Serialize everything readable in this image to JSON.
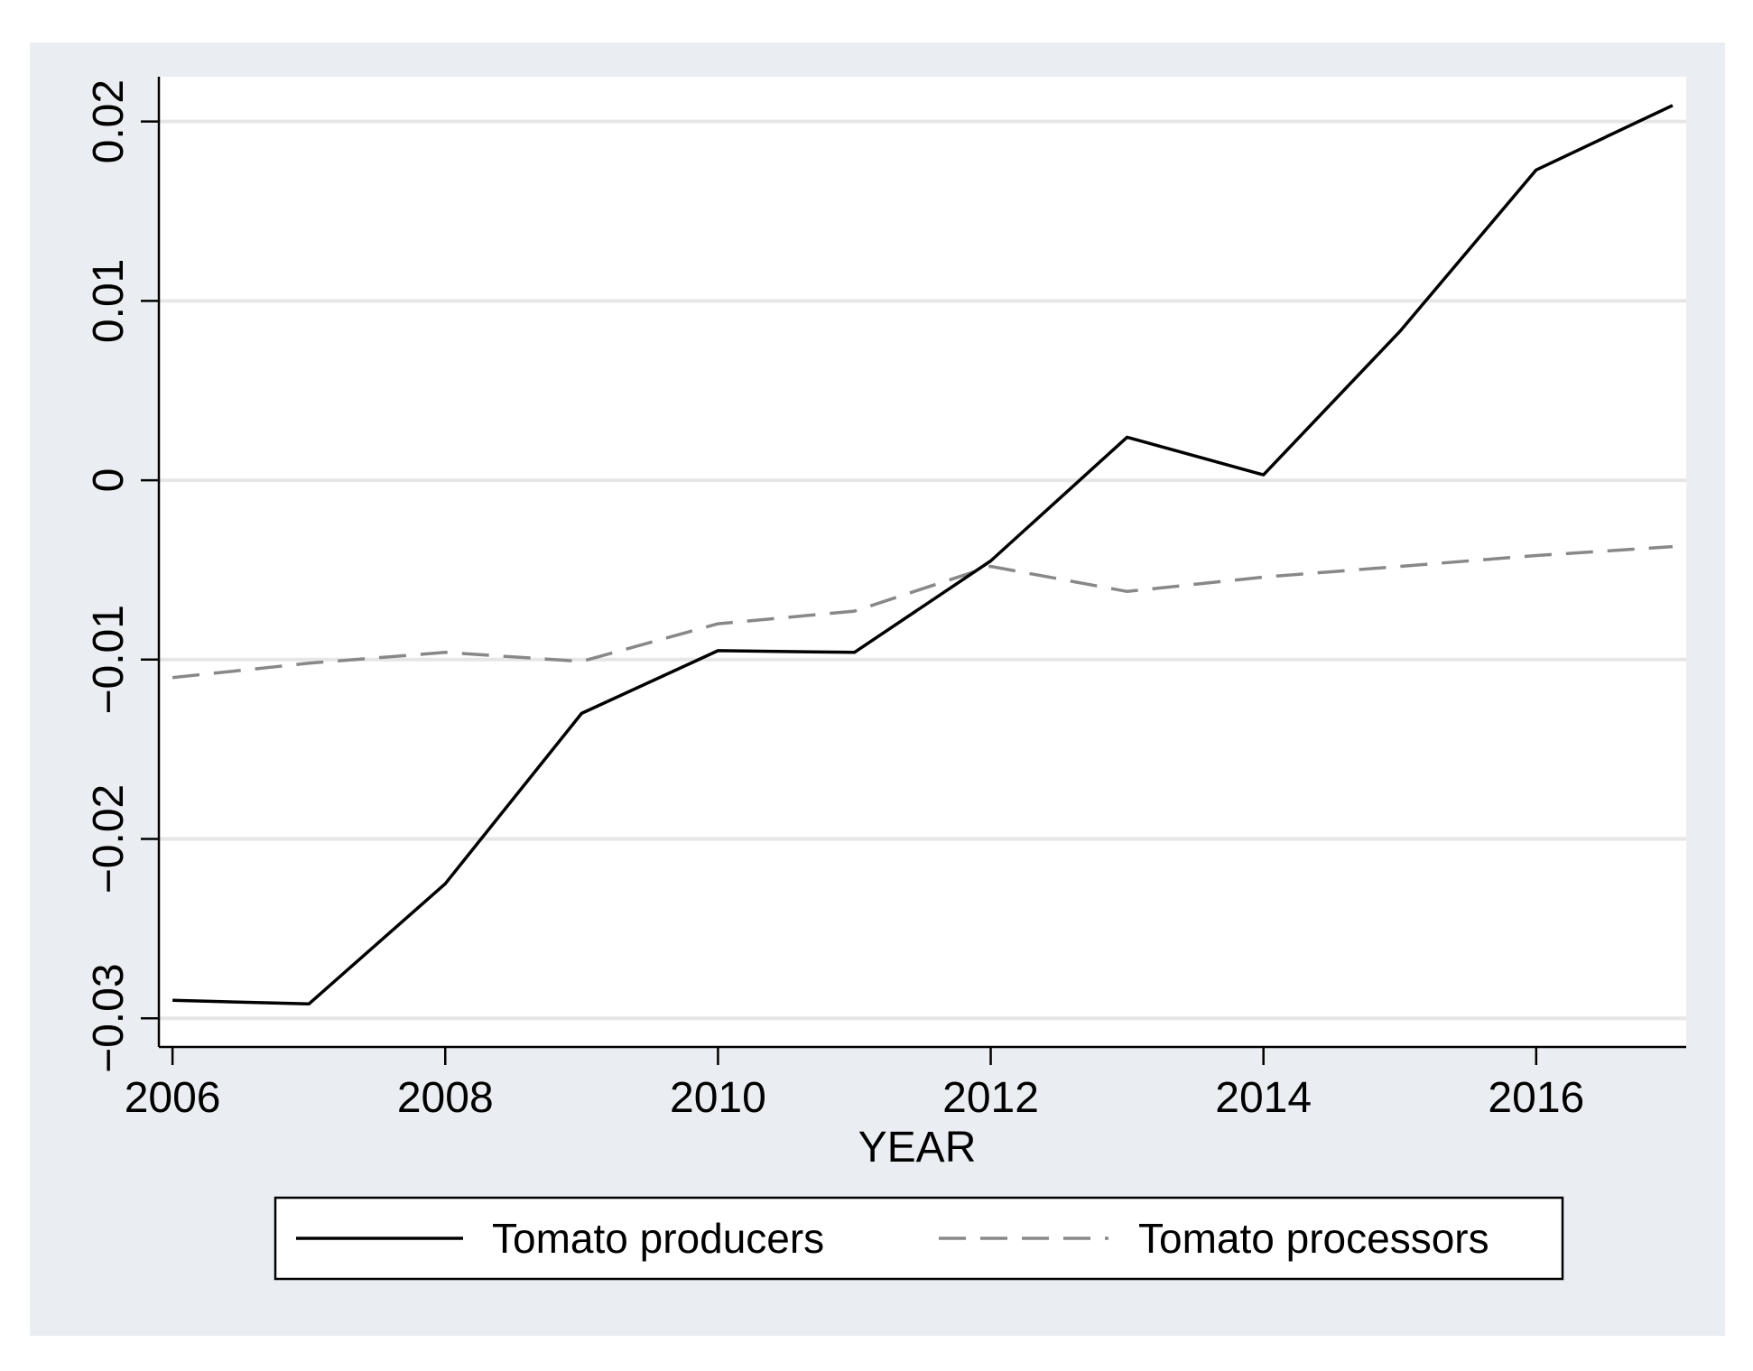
{
  "chart_data": {
    "type": "line",
    "title": "",
    "xlabel": "YEAR",
    "ylabel": "",
    "x": [
      2006,
      2007,
      2008,
      2009,
      2010,
      2011,
      2012,
      2013,
      2014,
      2015,
      2016,
      2017
    ],
    "series": [
      {
        "name": "Tomato producers",
        "style": "solid",
        "color": "#000000",
        "values": [
          -0.029,
          -0.0292,
          -0.0225,
          -0.013,
          -0.0095,
          -0.0096,
          -0.0045,
          0.0024,
          0.0003,
          0.0083,
          0.0173,
          0.0209
        ]
      },
      {
        "name": "Tomato processors",
        "style": "dashed",
        "color": "#888888",
        "values": [
          -0.011,
          -0.0102,
          -0.0096,
          -0.0101,
          -0.008,
          -0.0073,
          -0.0048,
          -0.0062,
          -0.0054,
          -0.0048,
          -0.0042,
          -0.0037
        ]
      }
    ],
    "xlim": [
      2005.9,
      2017.1
    ],
    "ylim": [
      -0.0316,
      0.0225
    ],
    "xticks": [
      2006,
      2008,
      2010,
      2012,
      2014,
      2016
    ],
    "xtick_labels": [
      "2006",
      "2008",
      "2010",
      "2012",
      "2014",
      "2016"
    ],
    "yticks": [
      -0.03,
      -0.02,
      -0.01,
      0,
      0.01,
      0.02
    ],
    "ytick_labels": [
      "−0.03",
      "−0.02",
      "−0.01",
      "0",
      "0.01",
      "0.02"
    ],
    "grid": true,
    "legend_position": "bottom",
    "colors": {
      "background": "#eaeef2",
      "plot": "#ffffff",
      "grid": "#e6e6e6"
    }
  }
}
